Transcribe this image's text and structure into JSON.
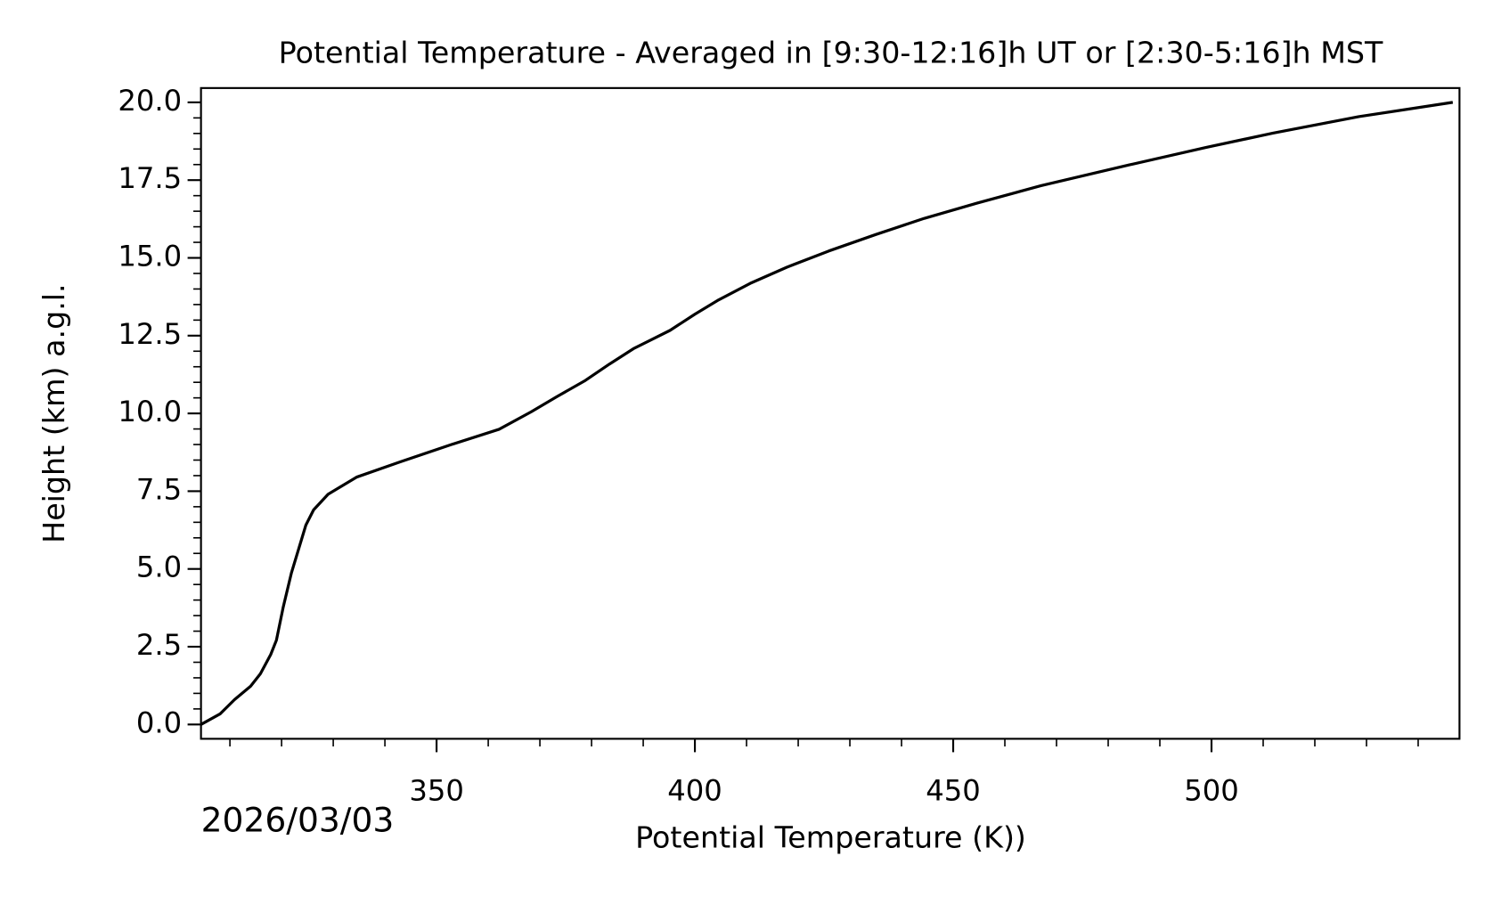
{
  "chart_data": {
    "type": "line",
    "title": "Potential Temperature - Averaged in [9:30-12:16]h UT or [2:30-5:16]h MST",
    "x_label": "Potential Temperature (K))",
    "y_label": "Height (km) a.g.l.",
    "date_label": "2026/03/03",
    "xlim": [
      304.4,
      548
    ],
    "ylim": [
      -0.46,
      20.46
    ],
    "xticks": [
      350,
      400,
      450,
      500
    ],
    "xminorticks": [
      310,
      320,
      330,
      340,
      360,
      370,
      380,
      390,
      410,
      420,
      430,
      440,
      460,
      470,
      480,
      490,
      510,
      520,
      530,
      540
    ],
    "yticks": [
      {
        "value": 0,
        "label": "0.0"
      },
      {
        "value": 2.5,
        "label": "2.5"
      },
      {
        "value": 5,
        "label": "5.0"
      },
      {
        "value": 7.5,
        "label": "7.5"
      },
      {
        "value": 10,
        "label": "10.0"
      },
      {
        "value": 12.5,
        "label": "12.5"
      },
      {
        "value": 15,
        "label": "15.0"
      },
      {
        "value": 17.5,
        "label": "17.5"
      },
      {
        "value": 20,
        "label": "20.0"
      }
    ],
    "yminorticks": [
      0.5,
      1,
      1.5,
      2,
      3,
      3.5,
      4,
      4.5,
      5.5,
      6,
      6.5,
      7,
      8,
      8.5,
      9,
      9.5,
      10.5,
      11,
      11.5,
      12,
      13,
      13.5,
      14,
      14.5,
      15.5,
      16,
      16.5,
      17,
      18,
      18.5,
      19,
      19.5
    ],
    "series": [
      {
        "color": "#000000",
        "x": [
          304.4,
          308.1,
          310.9,
          314.0,
          315.9,
          317.9,
          319.0,
          320.3,
          321.9,
          324.7,
          326.2,
          329.0,
          334.5,
          342.9,
          352.9,
          362.1,
          368.3,
          373.3,
          378.8,
          383.5,
          388.1,
          395.2,
          400.0,
          404.6,
          410.7,
          417.8,
          425.9,
          435.0,
          444.4,
          454.6,
          467.0,
          484.1,
          498.9,
          511.9,
          528.5,
          546.7
        ],
        "values": [
          0,
          0.34,
          0.8,
          1.23,
          1.63,
          2.25,
          2.71,
          3.76,
          4.87,
          6.41,
          6.9,
          7.4,
          7.95,
          8.44,
          9.0,
          9.49,
          10.05,
          10.54,
          11.06,
          11.59,
          12.08,
          12.67,
          13.19,
          13.65,
          14.18,
          14.7,
          15.22,
          15.75,
          16.27,
          16.76,
          17.32,
          17.99,
          18.55,
          19.01,
          19.54,
          20
        ]
      }
    ]
  }
}
